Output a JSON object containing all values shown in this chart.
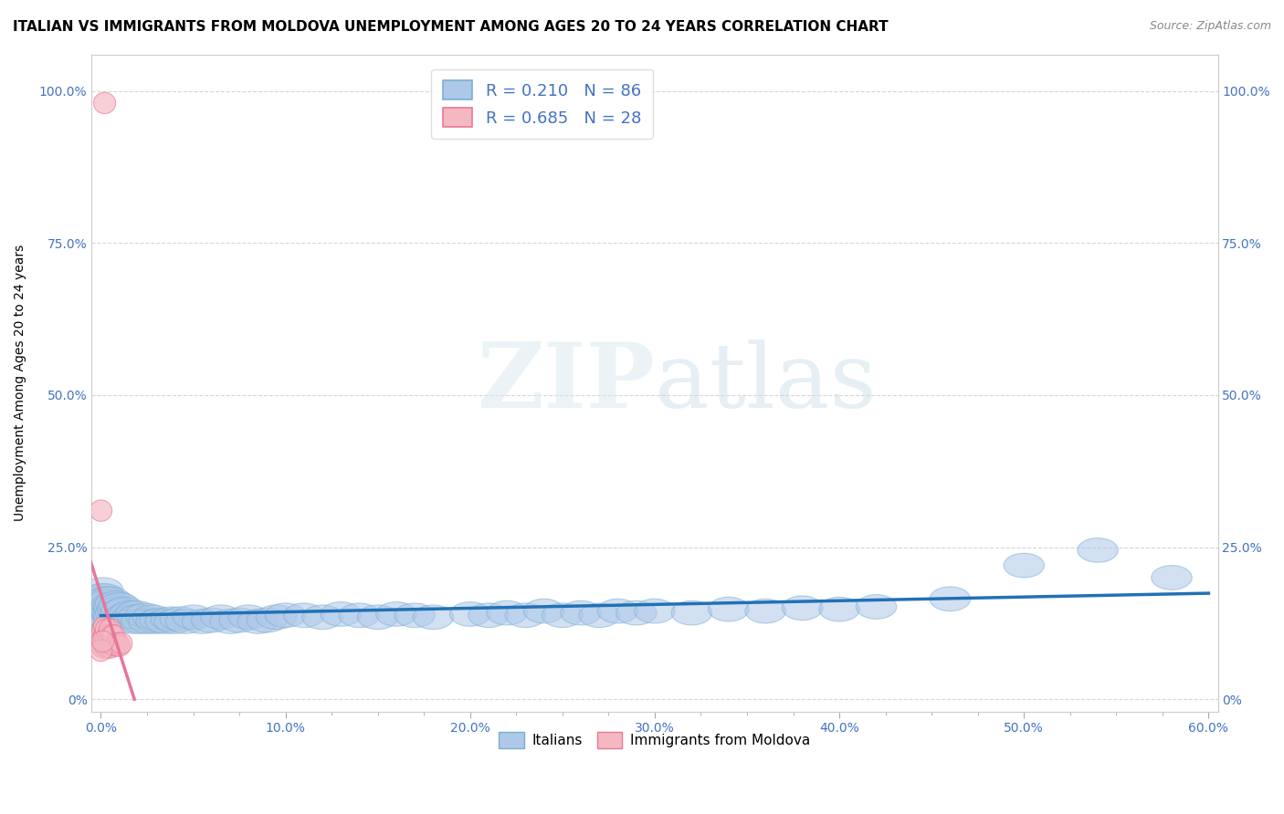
{
  "title": "ITALIAN VS IMMIGRANTS FROM MOLDOVA UNEMPLOYMENT AMONG AGES 20 TO 24 YEARS CORRELATION CHART",
  "source": "Source: ZipAtlas.com",
  "ylabel": "Unemployment Among Ages 20 to 24 years",
  "xlim": [
    -0.005,
    0.605
  ],
  "ylim": [
    -0.02,
    1.06
  ],
  "xtick_labels": [
    "0.0%",
    "",
    "",
    "",
    "10.0%",
    "",
    "",
    "",
    "20.0%",
    "",
    "",
    "",
    "30.0%",
    "",
    "",
    "",
    "40.0%",
    "",
    "",
    "",
    "50.0%",
    "",
    "",
    "",
    "60.0%"
  ],
  "xtick_values": [
    0.0,
    0.025,
    0.05,
    0.075,
    0.1,
    0.125,
    0.15,
    0.175,
    0.2,
    0.225,
    0.25,
    0.275,
    0.3,
    0.325,
    0.35,
    0.375,
    0.4,
    0.425,
    0.45,
    0.475,
    0.5,
    0.525,
    0.55,
    0.575,
    0.6
  ],
  "ytick_labels": [
    "0%",
    "25.0%",
    "50.0%",
    "75.0%",
    "100.0%"
  ],
  "ytick_values": [
    0.0,
    0.25,
    0.5,
    0.75,
    1.0
  ],
  "italian_R": 0.21,
  "italian_N": 86,
  "moldova_R": 0.685,
  "moldova_N": 28,
  "blue_marker_face": "#adc8e8",
  "blue_marker_edge": "#7bafd4",
  "blue_line_color": "#2171b5",
  "pink_marker_face": "#f4b8c0",
  "pink_marker_edge": "#e87899",
  "pink_line_color": "#e8759a",
  "legend_blue_face": "#adc8e8",
  "legend_pink_face": "#f4b8c0",
  "watermark_zip": "ZIP",
  "watermark_atlas": "atlas",
  "background_color": "#ffffff",
  "grid_color": "#cccccc",
  "title_fontsize": 11,
  "tick_color": "#4472c4",
  "tick_fontsize": 10,
  "legend_fontsize": 13
}
